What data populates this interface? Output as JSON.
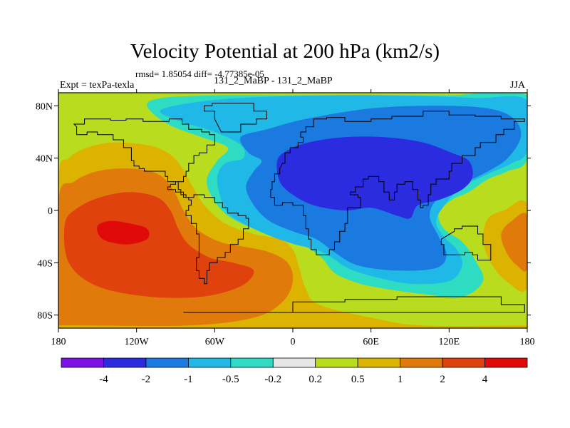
{
  "chart_data": {
    "type": "heatmap",
    "title": "Velocity Potential at 200 hPa (km2/s)",
    "stats_text": "rmsd= 1.85054  diff= -4.77385e-05",
    "left_label": "Expt = texPa-texla",
    "center_label": "131_2_MaBP - 131_2_MaBP",
    "right_label": "JJA",
    "xlim": [
      -180,
      180
    ],
    "ylim": [
      -90,
      90
    ],
    "x_ticks": [
      {
        "value": -180,
        "label": "180"
      },
      {
        "value": -120,
        "label": "120W"
      },
      {
        "value": -60,
        "label": "60W"
      },
      {
        "value": 0,
        "label": "0"
      },
      {
        "value": 60,
        "label": "60E"
      },
      {
        "value": 120,
        "label": "120E"
      },
      {
        "value": 180,
        "label": "180"
      }
    ],
    "y_ticks": [
      {
        "value": 80,
        "label": "80N"
      },
      {
        "value": 40,
        "label": "40N"
      },
      {
        "value": 0,
        "label": "0"
      },
      {
        "value": -40,
        "label": "40S"
      },
      {
        "value": -80,
        "label": "80S"
      }
    ],
    "colorbar": {
      "levels": [
        "-4",
        "-2",
        "-1",
        "-0.5",
        "-0.2",
        "0.2",
        "0.5",
        "1",
        "2",
        "4"
      ],
      "colors": [
        "#7d12e6",
        "#2b2be0",
        "#1a7adf",
        "#20b8e6",
        "#2edcc4",
        "#e6e6e6",
        "#b9dc1e",
        "#dcb400",
        "#e07a0a",
        "#e0420e",
        "#e00a0a"
      ]
    },
    "regions": [
      {
        "name": "positive-west",
        "level": "0.2",
        "outline": [
          [
            -180,
            -90
          ],
          [
            -180,
            30
          ],
          [
            -172,
            48
          ],
          [
            -160,
            58
          ],
          [
            -140,
            62
          ],
          [
            -115,
            62
          ],
          [
            -98,
            58
          ],
          [
            -85,
            48
          ],
          [
            -74,
            36
          ],
          [
            -68,
            18
          ],
          [
            -58,
            2
          ],
          [
            -44,
            -8
          ],
          [
            -25,
            -14
          ],
          [
            -8,
            -18
          ],
          [
            5,
            -24
          ],
          [
            12,
            -36
          ],
          [
            18,
            -56
          ],
          [
            28,
            -70
          ],
          [
            60,
            -80
          ],
          [
            100,
            -86
          ],
          [
            180,
            -86
          ],
          [
            180,
            -90
          ]
        ]
      },
      {
        "name": "positive-east",
        "level": "0.2",
        "outline": [
          [
            180,
            10
          ],
          [
            158,
            6
          ],
          [
            145,
            -2
          ],
          [
            138,
            -10
          ],
          [
            140,
            -30
          ],
          [
            152,
            -50
          ],
          [
            165,
            -62
          ],
          [
            180,
            -66
          ]
        ]
      },
      {
        "name": "pos-0.5-west",
        "level": "0.5",
        "outline": [
          [
            -180,
            -90
          ],
          [
            -180,
            24
          ],
          [
            -172,
            40
          ],
          [
            -158,
            48
          ],
          [
            -138,
            52
          ],
          [
            -112,
            50
          ],
          [
            -96,
            44
          ],
          [
            -86,
            34
          ],
          [
            -78,
            20
          ],
          [
            -68,
            4
          ],
          [
            -52,
            -10
          ],
          [
            -30,
            -18
          ],
          [
            -10,
            -22
          ],
          [
            0,
            -30
          ],
          [
            5,
            -44
          ],
          [
            10,
            -60
          ],
          [
            20,
            -72
          ],
          [
            60,
            -82
          ],
          [
            100,
            -88
          ],
          [
            180,
            -88
          ],
          [
            180,
            -90
          ]
        ]
      },
      {
        "name": "pos-0.5-east",
        "level": "0.5",
        "outline": [
          [
            180,
            4
          ],
          [
            162,
            0
          ],
          [
            150,
            -6
          ],
          [
            146,
            -22
          ],
          [
            152,
            -40
          ],
          [
            165,
            -55
          ],
          [
            180,
            -58
          ]
        ]
      },
      {
        "name": "pos-1",
        "level": "1",
        "outline": [
          [
            -180,
            -90
          ],
          [
            -180,
            8
          ],
          [
            -168,
            22
          ],
          [
            -150,
            30
          ],
          [
            -125,
            32
          ],
          [
            -104,
            28
          ],
          [
            -92,
            16
          ],
          [
            -84,
            0
          ],
          [
            -74,
            -14
          ],
          [
            -56,
            -24
          ],
          [
            -36,
            -28
          ],
          [
            -18,
            -32
          ],
          [
            -4,
            -40
          ],
          [
            0,
            -54
          ],
          [
            -8,
            -70
          ],
          [
            -30,
            -82
          ],
          [
            -80,
            -88
          ],
          [
            -180,
            -88
          ]
        ]
      },
      {
        "name": "pos-1-east",
        "level": "1",
        "outline": [
          [
            180,
            -4
          ],
          [
            168,
            -8
          ],
          [
            160,
            -18
          ],
          [
            164,
            -32
          ],
          [
            172,
            -42
          ],
          [
            180,
            -44
          ]
        ]
      },
      {
        "name": "pos-2",
        "level": "2",
        "outline": [
          [
            -175,
            -10
          ],
          [
            -165,
            2
          ],
          [
            -148,
            10
          ],
          [
            -125,
            14
          ],
          [
            -104,
            10
          ],
          [
            -94,
            0
          ],
          [
            -88,
            -14
          ],
          [
            -80,
            -26
          ],
          [
            -64,
            -36
          ],
          [
            -46,
            -40
          ],
          [
            -30,
            -46
          ],
          [
            -40,
            -58
          ],
          [
            -70,
            -66
          ],
          [
            -110,
            -66
          ],
          [
            -150,
            -58
          ],
          [
            -172,
            -40
          ]
        ]
      },
      {
        "name": "pos-4",
        "level": "4",
        "outline": [
          [
            -150,
            -12
          ],
          [
            -140,
            -8
          ],
          [
            -125,
            -10
          ],
          [
            -112,
            -14
          ],
          [
            -112,
            -22
          ],
          [
            -128,
            -26
          ],
          [
            -146,
            -22
          ]
        ]
      },
      {
        "name": "negative-main",
        "level": "-0.2",
        "outline": [
          [
            -112,
            80
          ],
          [
            -100,
            86
          ],
          [
            -60,
            88
          ],
          [
            0,
            88
          ],
          [
            60,
            88
          ],
          [
            120,
            88
          ],
          [
            180,
            88
          ],
          [
            180,
            40
          ],
          [
            165,
            30
          ],
          [
            150,
            24
          ],
          [
            135,
            14
          ],
          [
            122,
            8
          ],
          [
            112,
            -2
          ],
          [
            116,
            -14
          ],
          [
            130,
            -24
          ],
          [
            140,
            -38
          ],
          [
            146,
            -54
          ],
          [
            130,
            -66
          ],
          [
            100,
            -64
          ],
          [
            60,
            -58
          ],
          [
            40,
            -52
          ],
          [
            30,
            -46
          ],
          [
            22,
            -36
          ],
          [
            10,
            -28
          ],
          [
            -10,
            -20
          ],
          [
            -30,
            -14
          ],
          [
            -50,
            -4
          ],
          [
            -62,
            10
          ],
          [
            -66,
            24
          ],
          [
            -58,
            38
          ],
          [
            -50,
            48
          ],
          [
            -70,
            56
          ],
          [
            -96,
            66
          ]
        ]
      },
      {
        "name": "neg-0.5",
        "level": "-0.5",
        "outline": [
          [
            -102,
            76
          ],
          [
            -80,
            82
          ],
          [
            -40,
            86
          ],
          [
            20,
            88
          ],
          [
            80,
            88
          ],
          [
            140,
            86
          ],
          [
            180,
            84
          ],
          [
            180,
            46
          ],
          [
            168,
            36
          ],
          [
            150,
            28
          ],
          [
            130,
            18
          ],
          [
            118,
            6
          ],
          [
            110,
            -8
          ],
          [
            116,
            -20
          ],
          [
            126,
            -30
          ],
          [
            130,
            -42
          ],
          [
            120,
            -54
          ],
          [
            90,
            -56
          ],
          [
            60,
            -50
          ],
          [
            42,
            -44
          ],
          [
            30,
            -36
          ],
          [
            18,
            -30
          ],
          [
            2,
            -26
          ],
          [
            -16,
            -20
          ],
          [
            -34,
            -12
          ],
          [
            -50,
            -2
          ],
          [
            -56,
            12
          ],
          [
            -58,
            26
          ],
          [
            -52,
            36
          ],
          [
            -38,
            40
          ],
          [
            -40,
            50
          ],
          [
            -60,
            60
          ],
          [
            -86,
            68
          ]
        ]
      },
      {
        "name": "neg-1",
        "level": "-1",
        "outline": [
          [
            -40,
            56
          ],
          [
            -20,
            62
          ],
          [
            10,
            70
          ],
          [
            60,
            78
          ],
          [
            110,
            80
          ],
          [
            150,
            78
          ],
          [
            170,
            70
          ],
          [
            175,
            56
          ],
          [
            165,
            40
          ],
          [
            150,
            30
          ],
          [
            130,
            20
          ],
          [
            112,
            10
          ],
          [
            105,
            -4
          ],
          [
            112,
            -20
          ],
          [
            118,
            -34
          ],
          [
            110,
            -44
          ],
          [
            80,
            -46
          ],
          [
            50,
            -42
          ],
          [
            32,
            -32
          ],
          [
            18,
            -22
          ],
          [
            0,
            -16
          ],
          [
            -18,
            -8
          ],
          [
            -30,
            4
          ],
          [
            -36,
            18
          ],
          [
            -30,
            30
          ],
          [
            -24,
            38
          ],
          [
            -34,
            44
          ]
        ]
      },
      {
        "name": "neg-2",
        "level": "-2",
        "outline": [
          [
            -12,
            38
          ],
          [
            -4,
            46
          ],
          [
            12,
            52
          ],
          [
            40,
            56
          ],
          [
            70,
            56
          ],
          [
            100,
            52
          ],
          [
            122,
            44
          ],
          [
            135,
            38
          ],
          [
            138,
            26
          ],
          [
            130,
            16
          ],
          [
            112,
            8
          ],
          [
            96,
            4
          ],
          [
            90,
            -6
          ],
          [
            80,
            -4
          ],
          [
            60,
            2
          ],
          [
            40,
            0
          ],
          [
            16,
            4
          ],
          [
            0,
            12
          ],
          [
            -10,
            22
          ]
        ]
      }
    ]
  }
}
